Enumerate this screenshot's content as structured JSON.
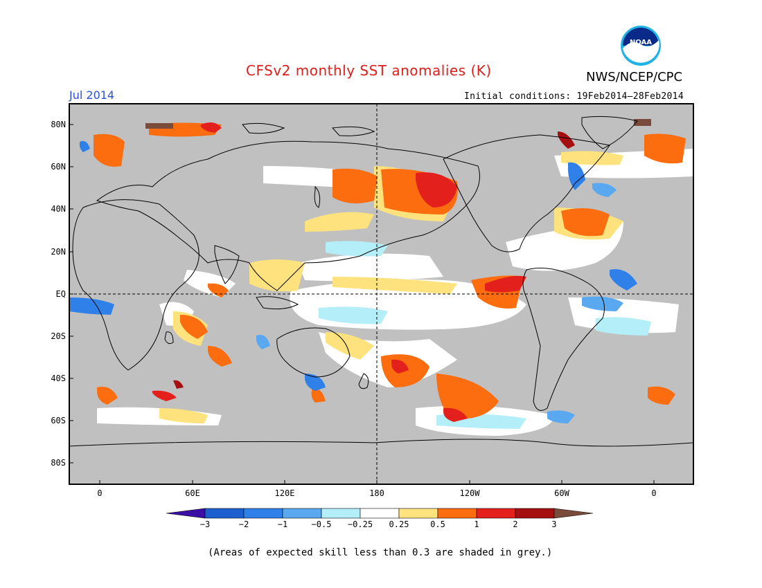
{
  "title": "CFSv2 monthly SST anomalies (K)",
  "agency": "NWS/NCEP/CPC",
  "logo_text": "NOAA",
  "target_month": "Jul 2014",
  "initial_conditions": "Initial conditions: 19Feb2014–28Feb2014",
  "lat_labels": [
    "80N",
    "60N",
    "40N",
    "20N",
    "EQ",
    "20S",
    "40S",
    "60S",
    "80S"
  ],
  "lon_labels": [
    "0",
    "60E",
    "120E",
    "180",
    "120W",
    "60W",
    "0"
  ],
  "colorbar": {
    "labels": [
      "−3",
      "−2",
      "−1",
      "−0.5",
      "−0.25",
      "0.25",
      "0.5",
      "1",
      "2",
      "3"
    ],
    "colors": [
      "#3b0fa3",
      "#1e5fd0",
      "#2f80e8",
      "#5aa8f0",
      "#b4eef8",
      "#ffffff",
      "#fde27e",
      "#fc6d10",
      "#e3201c",
      "#a50f0f",
      "#7a4a3a"
    ]
  },
  "land_color": "#c0c0c0",
  "skill_note": "(Areas of expected skill less than 0.3 are shaded in grey.)"
}
